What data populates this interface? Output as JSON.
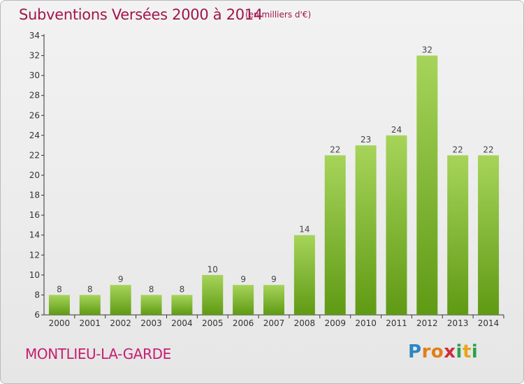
{
  "title": "Subventions Versées 2000 à 2014",
  "unit_note": "(en milliers d'€)",
  "place_name": "MONTLIEU-LA-GARDE",
  "brand": {
    "letters": [
      "P",
      "r",
      "o",
      "x",
      "i",
      "t",
      "i"
    ]
  },
  "colors": {
    "title": "#a0154a",
    "place": "#c51e70",
    "bar_top": "#a6d45a",
    "bar_bottom": "#5f9a14"
  },
  "chart_data": {
    "type": "bar",
    "categories": [
      "2000",
      "2001",
      "2002",
      "2003",
      "2004",
      "2005",
      "2006",
      "2007",
      "2008",
      "2009",
      "2010",
      "2011",
      "2012",
      "2013",
      "2014"
    ],
    "values": [
      8,
      8,
      9,
      8,
      8,
      10,
      9,
      9,
      14,
      22,
      23,
      24,
      32,
      22,
      22
    ],
    "ylim": [
      6,
      34
    ],
    "yticks": [
      6,
      8,
      10,
      12,
      14,
      16,
      18,
      20,
      22,
      24,
      26,
      28,
      30,
      32,
      34
    ],
    "grid": false,
    "legend": "none"
  }
}
